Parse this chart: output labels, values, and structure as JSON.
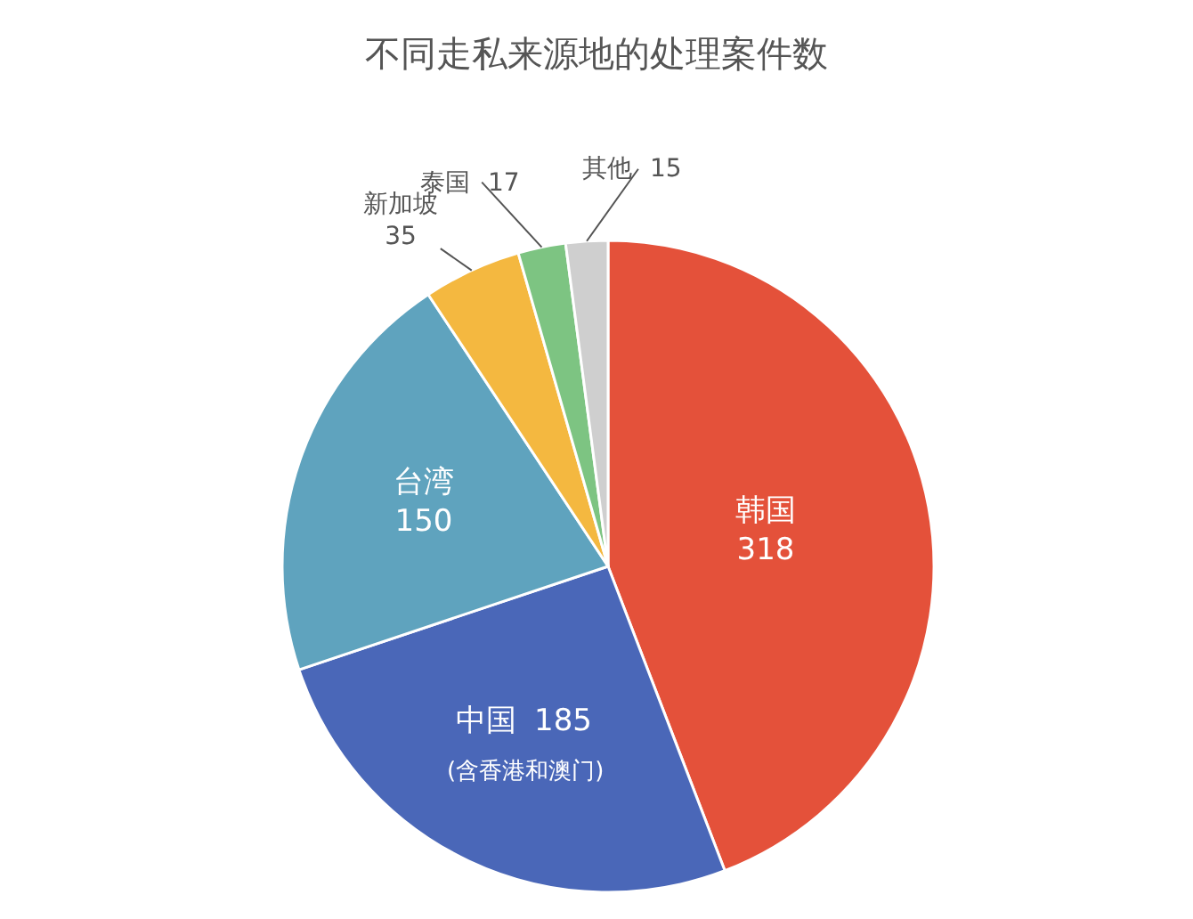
{
  "chart_data": {
    "type": "pie",
    "title": "不同走私来源地的处理案件数",
    "categories": [
      "韩国",
      "中国",
      "台湾",
      "新加坡",
      "泰国",
      "其他"
    ],
    "values": [
      318,
      185,
      150,
      35,
      17,
      15
    ],
    "colors": [
      "#e4513a",
      "#4a67b8",
      "#5fa3be",
      "#f4b840",
      "#7dc482",
      "#cfcfcf"
    ],
    "data_labels": true,
    "annotations": [
      "(含香港和澳门)"
    ],
    "legend": false
  }
}
